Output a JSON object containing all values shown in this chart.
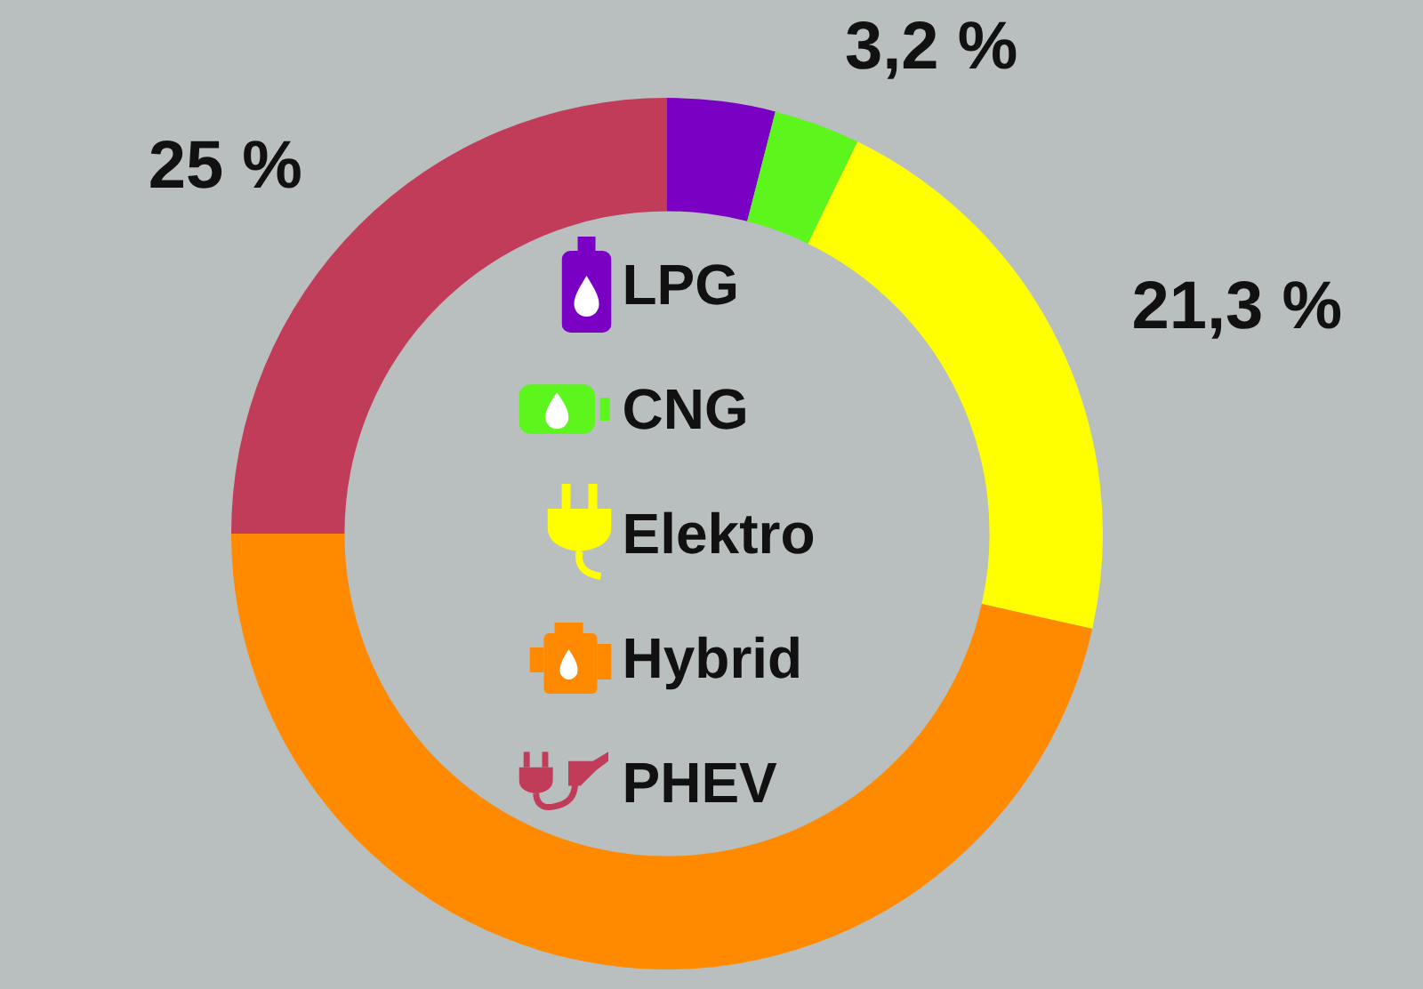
{
  "chart_data": {
    "type": "donut",
    "categories": [
      "LPG",
      "CNG",
      "Elektro",
      "Hybrid",
      "PHEV"
    ],
    "values": [
      4,
      3.2,
      21.3,
      46.5,
      25
    ],
    "colors": [
      "#7a00c4",
      "#5cf51c",
      "#ffff00",
      "#ff8a00",
      "#c13c58"
    ],
    "value_labels": [
      null,
      "3,2 %",
      "21,3 %",
      null,
      "25 %"
    ],
    "legend": "center"
  }
}
